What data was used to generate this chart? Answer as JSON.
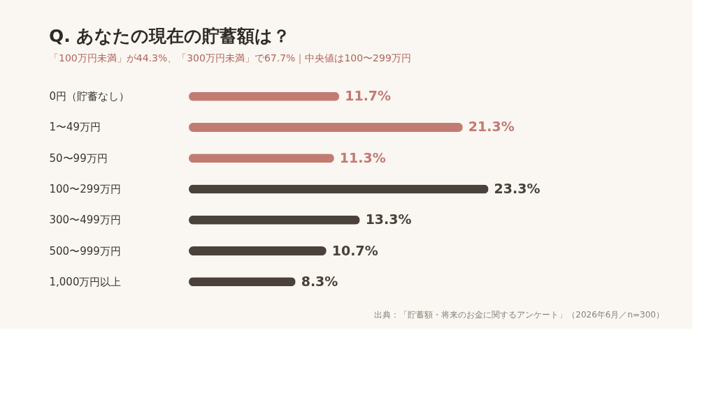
{
  "chart_data": {
    "type": "bar",
    "orientation": "horizontal",
    "title": "Q. あなたの現在の貯蓄額は？",
    "subtitle": "「100万円未満」が44.3%、「300万円未満」で67.7%｜中央値は100〜299万円",
    "categories": [
      "0円（貯蓄なし）",
      "1〜49万円",
      "50〜99万円",
      "100〜299万円",
      "300〜499万円",
      "500〜999万円",
      "1,000万円以上"
    ],
    "values": [
      11.7,
      21.3,
      11.3,
      23.3,
      13.3,
      10.7,
      8.3
    ],
    "value_labels": [
      "11.7%",
      "21.3%",
      "11.3%",
      "23.3%",
      "13.3%",
      "10.7%",
      "8.3%"
    ],
    "colors": [
      "#c17b73",
      "#c17b73",
      "#c17b73",
      "#4a423a",
      "#4a423a",
      "#4a423a",
      "#4a423a"
    ],
    "annotations": [
      "出典：「貯蓄額・将来のお金に関するアンケート」（2026年6月／n=300）"
    ]
  }
}
